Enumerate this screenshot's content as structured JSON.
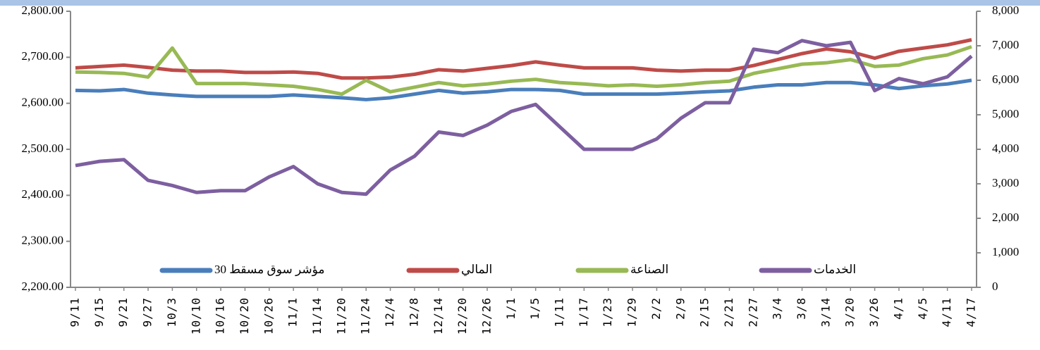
{
  "chart_data": {
    "type": "line",
    "categories": [
      "9/11",
      "9/15",
      "9/21",
      "9/27",
      "10/3",
      "10/10",
      "10/16",
      "10/20",
      "10/26",
      "11/1",
      "11/14",
      "11/20",
      "11/24",
      "12/4",
      "12/8",
      "12/14",
      "12/20",
      "12/26",
      "1/1",
      "1/5",
      "1/11",
      "1/17",
      "1/23",
      "1/29",
      "2/2",
      "2/9",
      "2/15",
      "2/21",
      "2/27",
      "3/4",
      "3/8",
      "3/14",
      "3/20",
      "3/26",
      "4/1",
      "4/5",
      "4/11",
      "4/17"
    ],
    "series": [
      {
        "name": "مؤشر سوق مسقط 30",
        "color": "#4a7ebb",
        "values": [
          2628,
          2627,
          2630,
          2622,
          2618,
          2615,
          2615,
          2615,
          2615,
          2618,
          2615,
          2612,
          2608,
          2612,
          2620,
          2628,
          2622,
          2625,
          2630,
          2630,
          2628,
          2620,
          2620,
          2620,
          2620,
          2622,
          2625,
          2627,
          2635,
          2640,
          2640,
          2645,
          2645,
          2640,
          2632,
          2638,
          2642,
          2650
        ]
      },
      {
        "name": "المالي",
        "color": "#be4b48",
        "values": [
          2677,
          2680,
          2683,
          2678,
          2672,
          2670,
          2670,
          2667,
          2667,
          2668,
          2665,
          2655,
          2655,
          2657,
          2663,
          2673,
          2670,
          2676,
          2682,
          2690,
          2683,
          2677,
          2677,
          2677,
          2672,
          2670,
          2672,
          2672,
          2682,
          2695,
          2708,
          2718,
          2712,
          2698,
          2713,
          2720,
          2727,
          2738
        ]
      },
      {
        "name": "الصناعة",
        "color": "#98b954",
        "values": [
          2668,
          2667,
          2665,
          2657,
          2720,
          2643,
          2643,
          2643,
          2640,
          2637,
          2630,
          2620,
          2650,
          2625,
          2635,
          2645,
          2638,
          2642,
          2648,
          2652,
          2645,
          2642,
          2638,
          2640,
          2637,
          2640,
          2645,
          2648,
          2665,
          2675,
          2685,
          2688,
          2695,
          2680,
          2683,
          2697,
          2705,
          2723
        ]
      },
      {
        "name": "الخدمات",
        "color": "#7d5fa0",
        "axis": "y2",
        "values": [
          3530,
          3650,
          3700,
          3100,
          2950,
          2750,
          2800,
          2800,
          3200,
          3500,
          3000,
          2750,
          2700,
          3400,
          3800,
          4500,
          4400,
          4700,
          5100,
          5300,
          4650,
          4000,
          4000,
          4000,
          4300,
          4900,
          5350,
          5350,
          6900,
          6800,
          7150,
          7000,
          7100,
          5700,
          6050,
          5900,
          6100,
          6700
        ]
      }
    ],
    "ylim": [
      2200,
      2800
    ],
    "yticks": [
      {
        "value": 2200,
        "label": "2,200.00"
      },
      {
        "value": 2300,
        "label": "2,300.00"
      },
      {
        "value": 2400,
        "label": "2,400.00"
      },
      {
        "value": 2500,
        "label": "2,500.00"
      },
      {
        "value": 2600,
        "label": "2,600.00"
      },
      {
        "value": 2700,
        "label": "2,700.00"
      },
      {
        "value": 2800,
        "label": "2,800.00"
      }
    ],
    "y2lim": [
      0,
      8000
    ],
    "y2ticks": [
      0,
      {
        "value": 1000,
        "label": "1,000"
      },
      {
        "value": 2000,
        "label": "2,000"
      },
      {
        "value": 3000,
        "label": "3,000"
      },
      {
        "value": 4000,
        "label": "4,000"
      },
      {
        "value": 5000,
        "label": "5,000"
      },
      {
        "value": 6000,
        "label": "6,000"
      },
      {
        "value": 7000,
        "label": "7,000"
      },
      {
        "value": 8000,
        "label": "8,000"
      }
    ]
  }
}
